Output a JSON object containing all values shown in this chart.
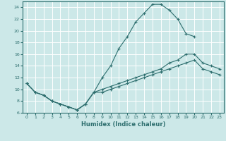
{
  "xlabel": "Humidex (Indice chaleur)",
  "bg_color": "#cce8e8",
  "grid_color": "#ffffff",
  "line_color": "#2d6e6e",
  "xlim": [
    -0.5,
    23.5
  ],
  "ylim": [
    6,
    25
  ],
  "xticks": [
    0,
    1,
    2,
    3,
    4,
    5,
    6,
    7,
    8,
    9,
    10,
    11,
    12,
    13,
    14,
    15,
    16,
    17,
    18,
    19,
    20,
    21,
    22,
    23
  ],
  "yticks": [
    6,
    8,
    10,
    12,
    14,
    16,
    18,
    20,
    22,
    24
  ],
  "line1_x": [
    0,
    1,
    2,
    3,
    4,
    5,
    6,
    7,
    8,
    9,
    10,
    11,
    12,
    13,
    14,
    15,
    16,
    17,
    18,
    19,
    20
  ],
  "line1_y": [
    11,
    9.5,
    9,
    8,
    7.5,
    7,
    6.5,
    7.5,
    9.5,
    12,
    14,
    17,
    19,
    21.5,
    23,
    24.5,
    24.5,
    23.5,
    22,
    19.5,
    19
  ],
  "line2_x": [
    0,
    1,
    2,
    3,
    4,
    5,
    6,
    7,
    8,
    9,
    10,
    11,
    12,
    13,
    14,
    15,
    16,
    17,
    18,
    19,
    20,
    21,
    22,
    23
  ],
  "line2_y": [
    11,
    9.5,
    9,
    8,
    7.5,
    7,
    6.5,
    7.5,
    9.5,
    10,
    10.5,
    11,
    11.5,
    12,
    12.5,
    13,
    13.5,
    14.5,
    15,
    16,
    16,
    14.5,
    14,
    13.5
  ],
  "line3_x": [
    0,
    1,
    2,
    3,
    4,
    5,
    6,
    7,
    8,
    9,
    10,
    11,
    12,
    13,
    14,
    15,
    16,
    17,
    18,
    19,
    20,
    21,
    22,
    23
  ],
  "line3_y": [
    11,
    9.5,
    9,
    8,
    7.5,
    7,
    6.5,
    7.5,
    9.5,
    9.5,
    10,
    10.5,
    11,
    11.5,
    12,
    12.5,
    13,
    13.5,
    14,
    14.5,
    15,
    13.5,
    13,
    12.5
  ]
}
